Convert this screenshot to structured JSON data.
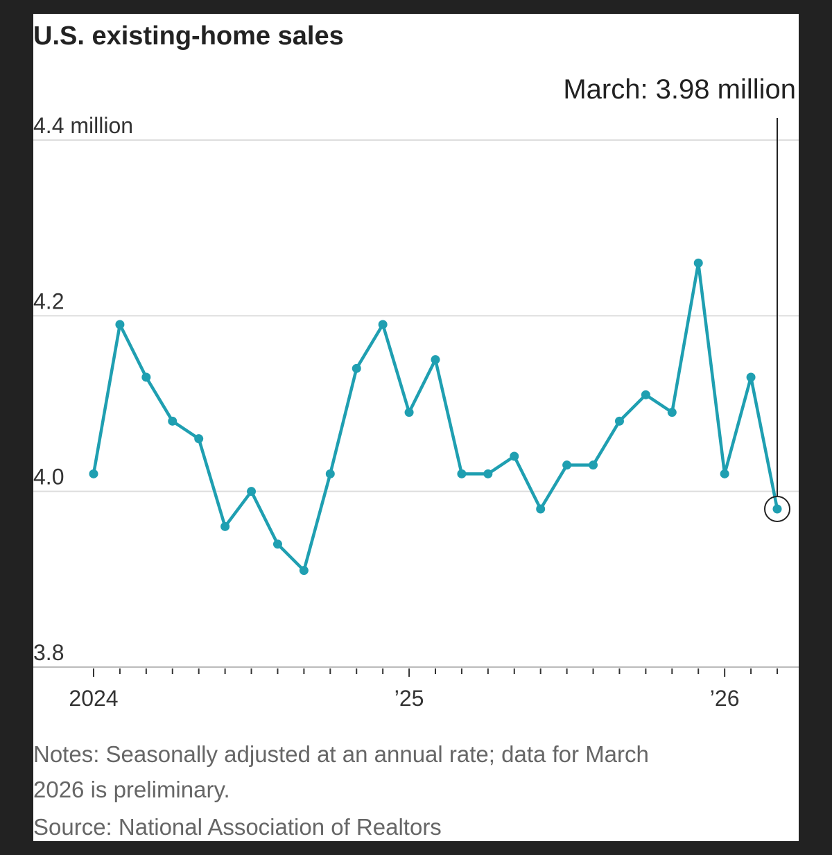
{
  "chart_data": {
    "type": "line",
    "title": "U.S. existing-home sales",
    "annotation": "March: 3.98 million",
    "notes": [
      "Notes: Seasonally adjusted at an annual rate; data for March",
      "2026 is preliminary."
    ],
    "source": "Source: National Association of Realtors",
    "categories": [
      "2024",
      null,
      null,
      null,
      null,
      null,
      null,
      null,
      null,
      null,
      null,
      null,
      "’25",
      null,
      null,
      null,
      null,
      null,
      null,
      null,
      null,
      null,
      null,
      null,
      "’26",
      null,
      null
    ],
    "series": [
      {
        "name": "Existing-home sales",
        "color": "#1f9fb1",
        "values": [
          4.02,
          4.19,
          4.13,
          4.08,
          4.06,
          3.96,
          4.0,
          3.94,
          3.91,
          4.02,
          4.14,
          4.19,
          4.09,
          4.15,
          4.02,
          4.02,
          4.04,
          3.98,
          4.03,
          4.03,
          4.08,
          4.11,
          4.09,
          4.26,
          4.02,
          4.13,
          3.98
        ]
      }
    ],
    "ylim": [
      3.8,
      4.4
    ],
    "yticks": [
      3.8,
      {
        "value": 4,
        "label": "4.0"
      },
      4.2,
      {
        "value": 4.4,
        "label": "4.4 million"
      }
    ],
    "grid": true
  }
}
